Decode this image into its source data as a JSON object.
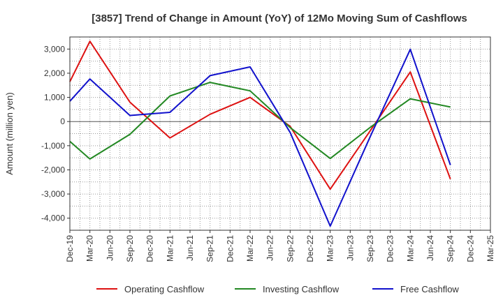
{
  "chart_data": {
    "type": "line",
    "title": "[3857]  Trend of Change in Amount (YoY) of 12Mo Moving Sum of Cashflows",
    "xlabel": "",
    "ylabel": "Amount (million yen)",
    "ylim": [
      -4500,
      3500
    ],
    "yticks": [
      -4000,
      -3000,
      -2000,
      -1000,
      0,
      1000,
      2000,
      3000
    ],
    "ytick_labels": [
      "-4,000",
      "-3,000",
      "-2,000",
      "-1,000",
      "0",
      "1,000",
      "2,000",
      "3,000"
    ],
    "categories": [
      "Dec-19",
      "Mar-20",
      "Jun-20",
      "Sep-20",
      "Dec-20",
      "Mar-21",
      "Jun-21",
      "Sep-21",
      "Dec-21",
      "Mar-22",
      "Jun-22",
      "Sep-22",
      "Dec-22",
      "Mar-23",
      "Jun-23",
      "Sep-23",
      "Dec-23",
      "Mar-24",
      "Jun-24",
      "Sep-24",
      "Dec-24",
      "Mar-25"
    ],
    "xtick_labels": [
      "Dec-19",
      "Mar-20",
      "Jun-20",
      "Sep-20",
      "Dec-20",
      "Mar-21",
      "Jun-21",
      "Sep-21",
      "Dec-21",
      "Mar-22",
      "Jun-22",
      "Sep-22",
      "Dec-22",
      "Mar-23",
      "Jun-23",
      "Sep-23",
      "Dec-23",
      "Mar-24",
      "Jun-24",
      "Sep-24",
      "Dec-24",
      "Mar-25"
    ],
    "grid": true,
    "legend_position": "bottom",
    "series": [
      {
        "name": "Operating Cashflow",
        "color": "#dd1111",
        "points": [
          [
            0,
            1650
          ],
          [
            1,
            3320
          ],
          [
            3,
            800
          ],
          [
            5,
            -680
          ],
          [
            7,
            300
          ],
          [
            9,
            1000
          ],
          [
            11,
            -200
          ],
          [
            13,
            -2800
          ],
          [
            15,
            -380
          ],
          [
            17,
            2050
          ],
          [
            19,
            -2380
          ]
        ]
      },
      {
        "name": "Investing Cashflow",
        "color": "#228822",
        "points": [
          [
            0,
            -820
          ],
          [
            1,
            -1550
          ],
          [
            3,
            -530
          ],
          [
            5,
            1060
          ],
          [
            7,
            1620
          ],
          [
            9,
            1270
          ],
          [
            11,
            -250
          ],
          [
            13,
            -1530
          ],
          [
            15,
            -240
          ],
          [
            17,
            940
          ],
          [
            19,
            600
          ]
        ]
      },
      {
        "name": "Free Cashflow",
        "color": "#1111cc",
        "points": [
          [
            0,
            840
          ],
          [
            1,
            1760
          ],
          [
            3,
            250
          ],
          [
            5,
            380
          ],
          [
            7,
            1900
          ],
          [
            9,
            2260
          ],
          [
            11,
            -450
          ],
          [
            13,
            -4330
          ],
          [
            15,
            -620
          ],
          [
            17,
            2990
          ],
          [
            19,
            -1800
          ]
        ]
      }
    ]
  }
}
